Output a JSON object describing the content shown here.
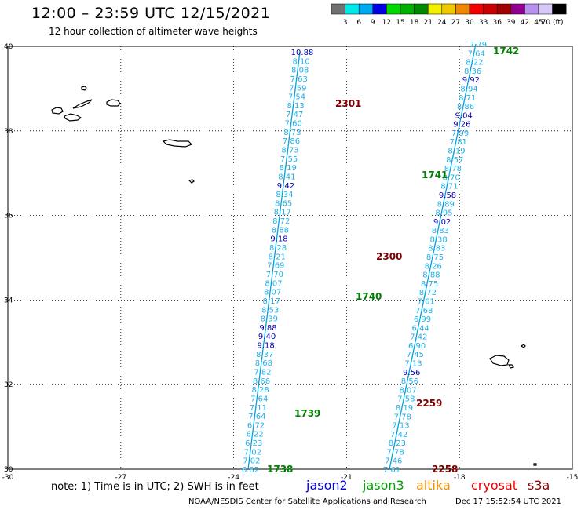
{
  "header": {
    "title": "12:00 – 23:59 UTC 12/15/2021",
    "subtitle": "12 hour collection of altimeter wave heights"
  },
  "colorbar": {
    "labels": [
      "3",
      "6",
      "9",
      "12",
      "15",
      "18",
      "21",
      "24",
      "27",
      "30",
      "33",
      "36",
      "39",
      "42",
      "45",
      "70 (ft)"
    ],
    "colors": [
      "#707070",
      "#00e8e8",
      "#00a8f0",
      "#0000e0",
      "#00d800",
      "#00b000",
      "#008800",
      "#f0f000",
      "#f0c800",
      "#f08800",
      "#f00000",
      "#c80000",
      "#a00000",
      "#900090",
      "#b890f0",
      "#d8c8f8",
      "#000000"
    ]
  },
  "map": {
    "lat_labels": [
      "40",
      "38",
      "36",
      "34",
      "32",
      "30"
    ],
    "lon_labels": [
      "-30",
      "-27",
      "-24",
      "-21",
      "-18",
      "-15"
    ],
    "lat_range": [
      30,
      40
    ],
    "lon_range": [
      -30,
      -15
    ],
    "grid": "dotted"
  },
  "tracks": [
    {
      "name": "jason3 descending",
      "color": "#00a0e0",
      "text_color": "#20b0e8",
      "values": [
        "10.88",
        "8.10",
        "8.08",
        "7.63",
        "7.59",
        "7.54",
        "8.13",
        "7.47",
        "7.60",
        "8.73",
        "7.86",
        "8.73",
        "7.55",
        "8.19",
        "8.41",
        "9.42",
        "8.34",
        "8.65",
        "8.17",
        "8.72",
        "8.88",
        "9.18",
        "8.28",
        "8.21",
        "7.69",
        "7.70",
        "8.07",
        "8.07",
        "8.17",
        "8.53",
        "8.39",
        "9.88",
        "9.40",
        "9.18",
        "8.37",
        "8.68",
        "7.82",
        "8.66",
        "8.28",
        "7.64",
        "7.11",
        "7.64",
        "6.72",
        "6.22",
        "6.23",
        "7.02",
        "7.02",
        "6.82"
      ]
    },
    {
      "name": "jason3 ascending",
      "color": "#00a0e0",
      "text_color": "#20b0e8",
      "values": [
        "7.79",
        "7.64",
        "8.22",
        "8.36",
        "9.92",
        "8.94",
        "8.71",
        "8.86",
        "9.04",
        "9.26",
        "7.99",
        "7.81",
        "8.19",
        "8.57",
        "8.78",
        "8.70",
        "8.71",
        "9.58",
        "8.89",
        "8.95",
        "9.02",
        "8.83",
        "8.38",
        "8.83",
        "8.75",
        "8.26",
        "8.88",
        "8.75",
        "8.72",
        "7.61",
        "7.68",
        "6.99",
        "6.44",
        "7.42",
        "6.90",
        "7.45",
        "7.13",
        "9.56",
        "8.56",
        "8.07",
        "7.58",
        "8.19",
        "7.78",
        "7.13",
        "7.42",
        "8.23",
        "7.78",
        "7.46",
        "7.61"
      ]
    }
  ],
  "time_labels": [
    {
      "text": "1742",
      "color": "#008000"
    },
    {
      "text": "2301",
      "color": "#800000"
    },
    {
      "text": "1741",
      "color": "#008000"
    },
    {
      "text": "2300",
      "color": "#800000"
    },
    {
      "text": "1740",
      "color": "#008000"
    },
    {
      "text": "2259",
      "color": "#800000"
    },
    {
      "text": "1739",
      "color": "#008000"
    },
    {
      "text": "2258",
      "color": "#800000"
    },
    {
      "text": "1738",
      "color": "#008000"
    }
  ],
  "note": "note: 1) Time is in UTC; 2) SWH is in feet",
  "legend": [
    {
      "label": "jason2",
      "color": "#0000e0"
    },
    {
      "label": "jason3",
      "color": "#00a000"
    },
    {
      "label": "altika",
      "color": "#f09000"
    },
    {
      "label": "cryosat",
      "color": "#f00000"
    },
    {
      "label": "s3a",
      "color": "#900000"
    }
  ],
  "footer": {
    "credit": "NOAA/NESDIS Center for Satellite Applications and Research",
    "timestamp": "Dec 17 15:52:54 UTC 2021"
  }
}
